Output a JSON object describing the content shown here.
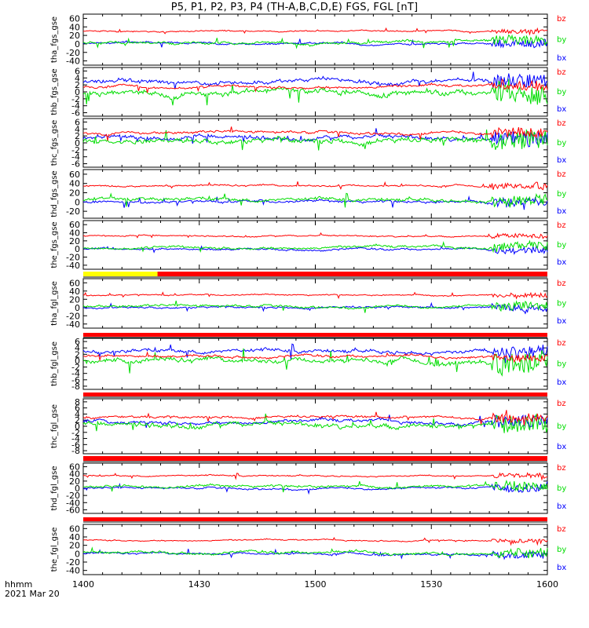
{
  "title": "P5, P1, P2, P3, P4 (TH-A,B,C,D,E) FGS, FGL [nT]",
  "footer": {
    "hhmm": "hhmm",
    "date": "2021 Mar 20"
  },
  "colors": {
    "bz": "#ff0000",
    "by": "#00dd00",
    "bx": "#0000ff",
    "bar_yellow": "#ffff00",
    "bar_red": "#ff0000",
    "bar_black": "#000000"
  },
  "chart_data": {
    "type": "line",
    "x_axis": {
      "ticks": [
        "1400",
        "1430",
        "1500",
        "1530",
        "1600"
      ],
      "range_minutes": [
        0,
        120
      ]
    },
    "legend": [
      "bz",
      "by",
      "bx"
    ],
    "panels": [
      {
        "label": "tha_fgs_gse",
        "ylim": [
          -50,
          70
        ],
        "yticks": [
          60,
          40,
          20,
          0,
          -20,
          -40
        ],
        "bz_level": 30,
        "by_level": 3,
        "bx_level": 0,
        "noise": 6
      },
      {
        "label": "thb_fgs_gse",
        "ylim": [
          -7,
          7
        ],
        "yticks": [
          6,
          4,
          2,
          0,
          -2,
          -4,
          -6
        ],
        "bz_level": 1.5,
        "by_level": 0,
        "bx_level": 3,
        "noise": 1.5
      },
      {
        "label": "thc_fgs_gse",
        "ylim": [
          -7,
          7
        ],
        "yticks": [
          6,
          4,
          2,
          0,
          -2,
          -4,
          -6
        ],
        "bz_level": 3,
        "by_level": 0.5,
        "bx_level": 1.5,
        "noise": 1.5
      },
      {
        "label": "thd_fgs_gse",
        "ylim": [
          -35,
          70
        ],
        "yticks": [
          60,
          40,
          20,
          0,
          -20
        ],
        "bz_level": 35,
        "by_level": 5,
        "bx_level": 0,
        "noise": 7
      },
      {
        "label": "the_fgs_gse",
        "ylim": [
          -50,
          70
        ],
        "yticks": [
          60,
          40,
          20,
          0,
          -20,
          -40
        ],
        "bz_level": 32,
        "by_level": 4,
        "bx_level": 0,
        "noise": 6
      },
      {
        "label": "tha_fgl_gse",
        "ylim": [
          -50,
          70
        ],
        "yticks": [
          60,
          40,
          20,
          0,
          -20,
          -40
        ],
        "bz_level": 30,
        "by_level": 3,
        "bx_level": 0,
        "noise": 6
      },
      {
        "label": "thb_fgl_gse",
        "ylim": [
          -9,
          7
        ],
        "yticks": [
          6,
          4,
          2,
          0,
          -2,
          -4,
          -6,
          -8
        ],
        "bz_level": 1.5,
        "by_level": 0,
        "bx_level": 3,
        "noise": 1.5
      },
      {
        "label": "thc_fgl_gse",
        "ylim": [
          -9,
          9
        ],
        "yticks": [
          8,
          6,
          4,
          2,
          0,
          -2,
          -4,
          -6,
          -8
        ],
        "bz_level": 3,
        "by_level": 0.5,
        "bx_level": 1.5,
        "noise": 1.5
      },
      {
        "label": "thd_fgl_gse",
        "ylim": [
          -70,
          70
        ],
        "yticks": [
          60,
          40,
          20,
          0,
          -20,
          -40,
          -60
        ],
        "bz_level": 35,
        "by_level": 5,
        "bx_level": 0,
        "noise": 7
      },
      {
        "label": "the_fgl_gse",
        "ylim": [
          -50,
          70
        ],
        "yticks": [
          60,
          40,
          20,
          0,
          -20,
          -40
        ],
        "bz_level": 32,
        "by_level": 4,
        "bx_level": 0,
        "noise": 6
      }
    ]
  }
}
